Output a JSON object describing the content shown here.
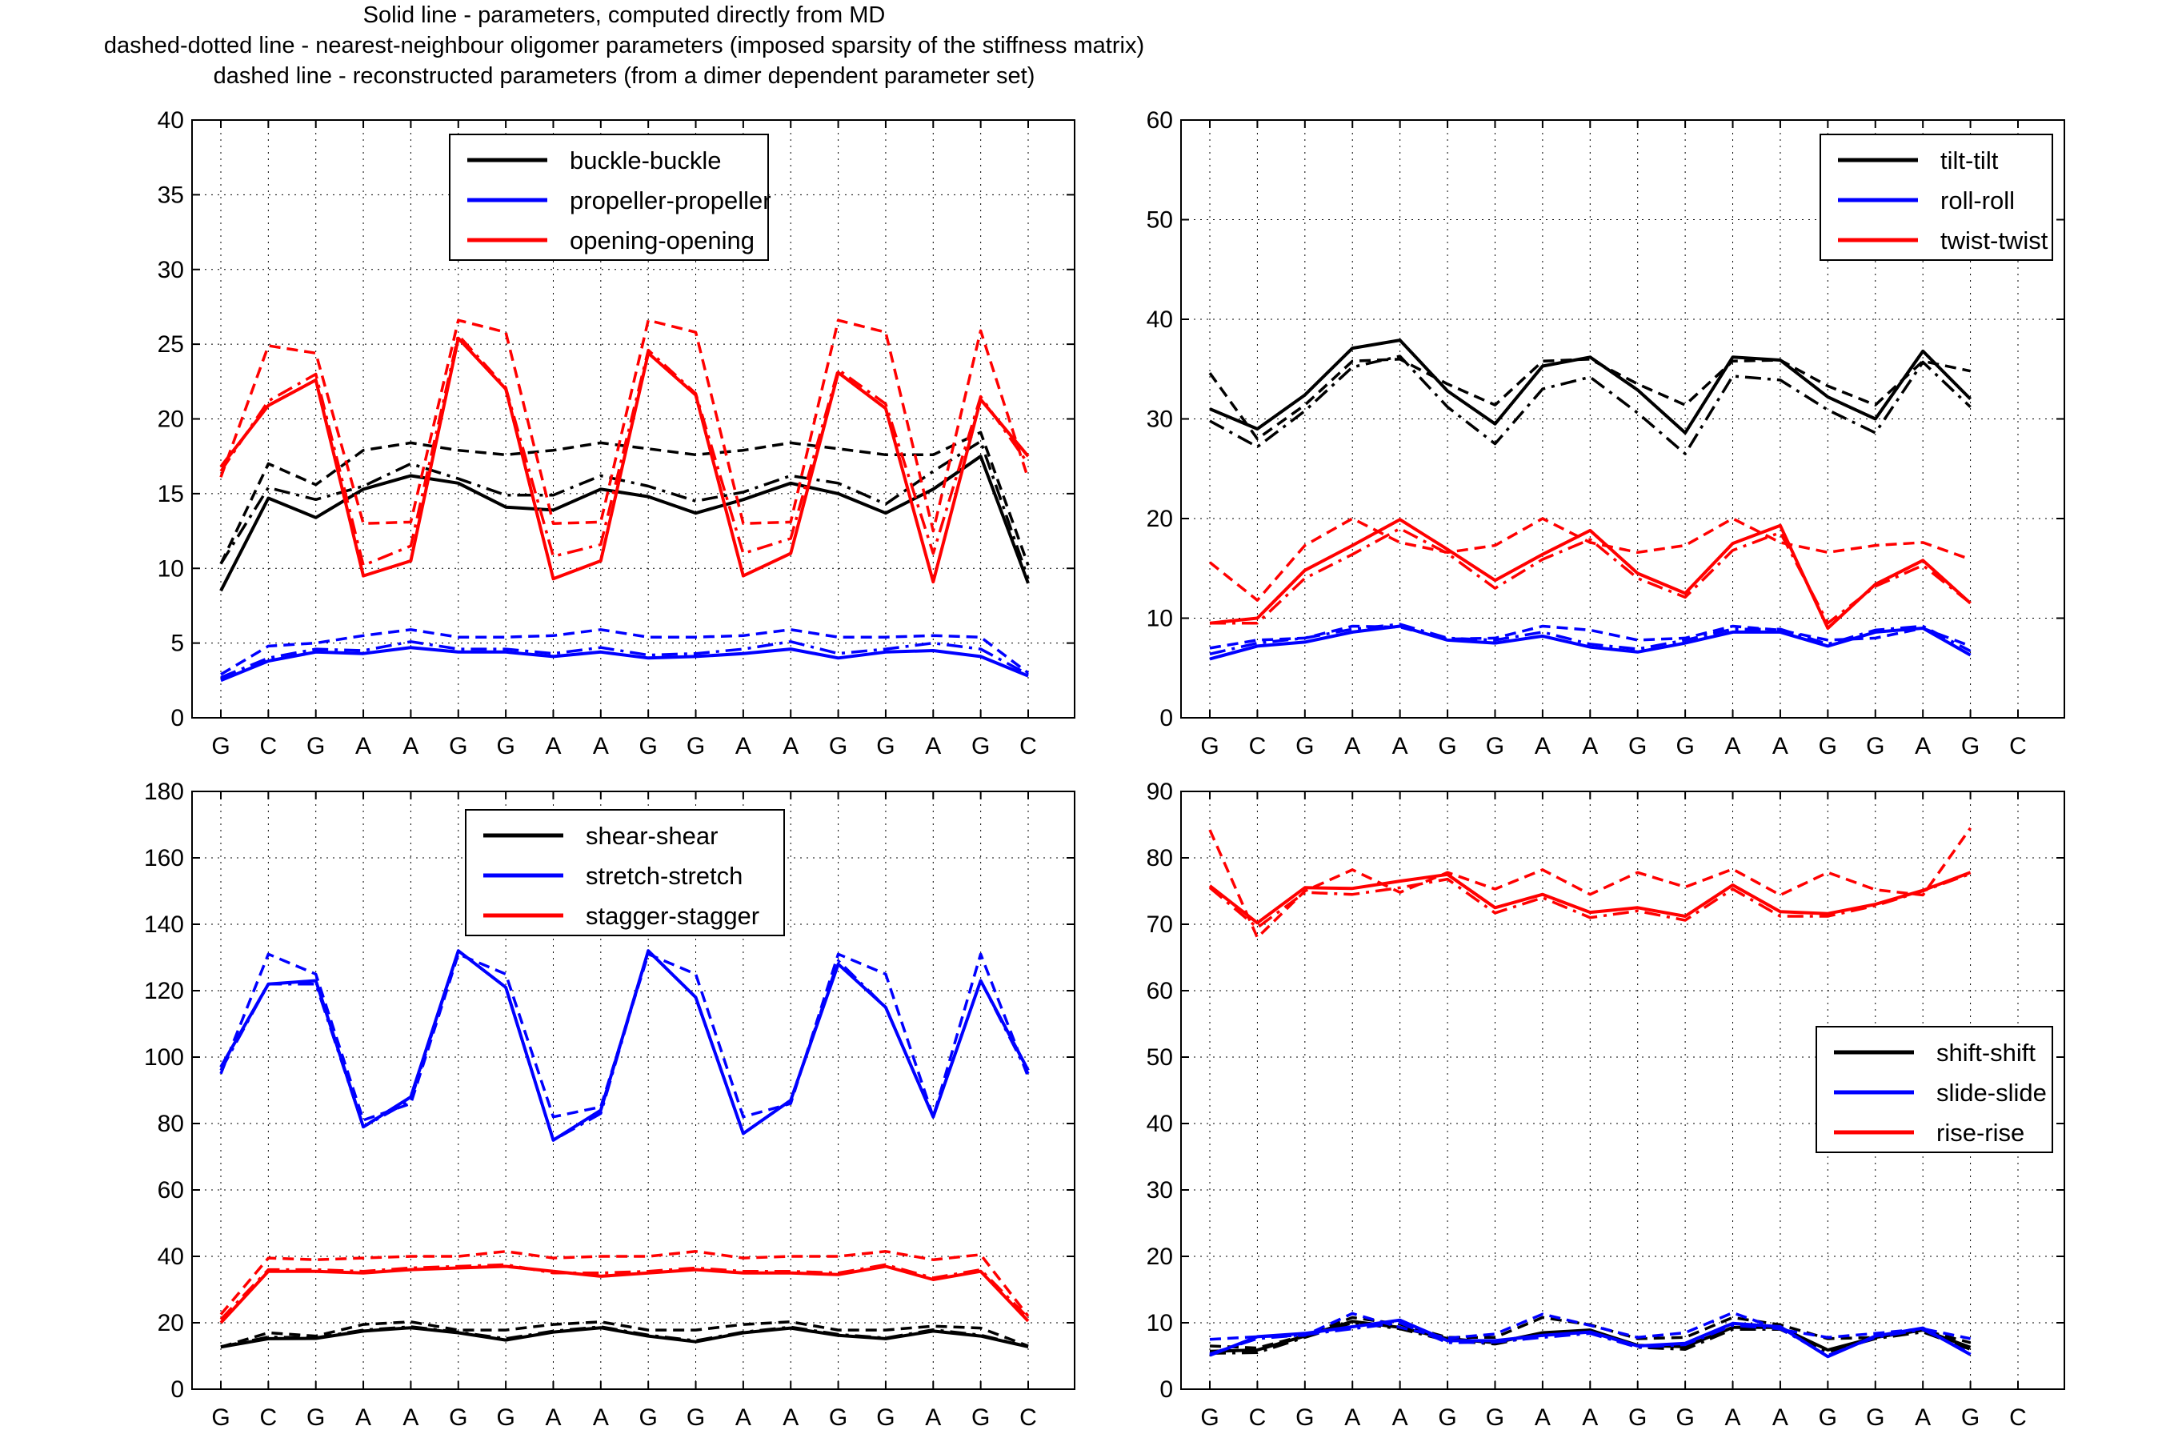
{
  "header": {
    "lines": [
      "Solid line - parameters, computed directly from MD",
      "dashed-dotted line - nearest-neighbour oligomer parameters (imposed sparsity of the stiffness matrix)",
      "dashed line - reconstructed parameters (from a dimer dependent parameter set)"
    ]
  },
  "colors": {
    "black": "#000000",
    "blue": "#0000ff",
    "red": "#ff0000"
  },
  "chart_data": [
    {
      "type": "line",
      "title": "",
      "categories": [
        "G",
        "C",
        "G",
        "A",
        "A",
        "G",
        "G",
        "A",
        "A",
        "G",
        "G",
        "A",
        "A",
        "G",
        "G",
        "A",
        "G",
        "C"
      ],
      "ylim": [
        0,
        40
      ],
      "yticks": [
        0,
        5,
        10,
        15,
        20,
        25,
        30,
        35,
        40
      ],
      "grid": true,
      "legend_position": "top-center",
      "series": [
        {
          "name": "buckle-buckle",
          "color": "#000000",
          "solid": [
            8.5,
            14.7,
            13.4,
            15.3,
            16.2,
            15.7,
            14.1,
            13.9,
            15.3,
            14.8,
            13.7,
            14.6,
            15.7,
            15.0,
            13.7,
            15.3,
            17.5,
            9.0
          ],
          "dashdot": [
            10.3,
            15.4,
            14.6,
            15.5,
            17.0,
            16.0,
            14.9,
            14.9,
            16.2,
            15.5,
            14.5,
            15.1,
            16.2,
            15.7,
            14.3,
            16.5,
            18.5,
            9.3
          ],
          "dashed": [
            10.3,
            17.0,
            15.6,
            17.9,
            18.4,
            17.9,
            17.6,
            17.9,
            18.4,
            18.0,
            17.6,
            17.9,
            18.4,
            18.0,
            17.6,
            17.6,
            19.1,
            10.2
          ]
        },
        {
          "name": "propeller-propeller",
          "color": "#0000ff",
          "solid": [
            2.5,
            3.8,
            4.4,
            4.3,
            4.7,
            4.4,
            4.4,
            4.1,
            4.4,
            4.0,
            4.1,
            4.3,
            4.6,
            4.0,
            4.4,
            4.5,
            4.1,
            2.8
          ],
          "dashdot": [
            2.7,
            4.0,
            4.6,
            4.5,
            5.1,
            4.6,
            4.6,
            4.3,
            4.7,
            4.2,
            4.3,
            4.6,
            5.1,
            4.3,
            4.6,
            5.0,
            4.6,
            2.9
          ],
          "dashed": [
            2.9,
            4.8,
            5.0,
            5.5,
            5.9,
            5.4,
            5.4,
            5.5,
            5.9,
            5.4,
            5.4,
            5.5,
            5.9,
            5.4,
            5.4,
            5.5,
            5.4,
            3.0
          ]
        },
        {
          "name": "opening-opening",
          "color": "#ff0000",
          "solid": [
            16.8,
            20.9,
            22.6,
            9.5,
            10.5,
            25.4,
            22.0,
            9.3,
            10.5,
            24.4,
            21.6,
            9.5,
            11.0,
            23.1,
            20.7,
            9.1,
            21.3,
            17.5
          ],
          "dashdot": [
            16.5,
            21.2,
            23.0,
            10.2,
            11.5,
            25.6,
            22.1,
            10.8,
            11.6,
            24.6,
            21.7,
            11.0,
            12.0,
            23.3,
            21.0,
            11.0,
            21.5,
            17.0
          ],
          "dashed": [
            16.1,
            24.9,
            24.4,
            13.0,
            13.1,
            26.6,
            25.8,
            13.0,
            13.1,
            26.6,
            25.8,
            13.0,
            13.1,
            26.6,
            25.8,
            12.5,
            25.9,
            16.0
          ]
        }
      ]
    },
    {
      "type": "line",
      "title": "",
      "categories": [
        "G",
        "C",
        "G",
        "A",
        "A",
        "G",
        "G",
        "A",
        "A",
        "G",
        "G",
        "A",
        "A",
        "G",
        "G",
        "A",
        "G",
        "C"
      ],
      "ylim": [
        0,
        60
      ],
      "yticks": [
        0,
        10,
        20,
        30,
        40,
        50,
        60
      ],
      "grid": true,
      "legend_position": "top-right",
      "series": [
        {
          "name": "tilt-tilt",
          "color": "#000000",
          "solid": [
            31.0,
            29.0,
            32.4,
            37.1,
            37.9,
            32.8,
            29.5,
            35.3,
            36.2,
            32.9,
            28.6,
            36.2,
            35.9,
            32.2,
            30.0,
            36.8,
            32.0
          ],
          "dashdot": [
            29.8,
            27.2,
            30.8,
            35.2,
            36.3,
            31.2,
            27.5,
            33.0,
            34.2,
            30.6,
            26.5,
            34.3,
            33.9,
            30.9,
            28.6,
            35.7,
            31.2
          ],
          "dashed": [
            34.6,
            28.0,
            31.4,
            35.8,
            36.0,
            33.5,
            31.4,
            35.8,
            36.0,
            33.5,
            31.4,
            35.8,
            35.9,
            33.3,
            31.4,
            35.8,
            34.8
          ]
        },
        {
          "name": "roll-roll",
          "color": "#0000ff",
          "solid": [
            5.9,
            7.2,
            7.6,
            8.6,
            9.2,
            7.8,
            7.5,
            8.2,
            7.1,
            6.6,
            7.5,
            8.6,
            8.6,
            7.2,
            8.6,
            9.0,
            6.3
          ],
          "dashdot": [
            6.4,
            7.5,
            8.0,
            8.9,
            9.4,
            8.0,
            7.8,
            8.6,
            7.4,
            6.9,
            7.8,
            8.9,
            8.9,
            7.4,
            8.8,
            9.2,
            6.7
          ],
          "dashed": [
            7.0,
            7.8,
            8.0,
            9.2,
            9.1,
            7.9,
            8.0,
            9.2,
            8.8,
            7.8,
            8.0,
            9.2,
            8.8,
            7.8,
            8.0,
            9.0,
            7.2
          ]
        },
        {
          "name": "twist-twist",
          "color": "#ff0000",
          "solid": [
            9.5,
            10.0,
            14.8,
            17.3,
            19.9,
            16.9,
            13.8,
            16.4,
            18.8,
            14.5,
            12.5,
            17.5,
            19.3,
            9.0,
            13.4,
            15.8,
            11.5
          ],
          "dashdot": [
            9.5,
            9.5,
            14.0,
            16.4,
            19.0,
            16.5,
            13.0,
            15.9,
            17.9,
            14.0,
            12.1,
            16.8,
            18.6,
            9.5,
            13.2,
            15.3,
            11.5
          ],
          "dashed": [
            15.6,
            11.8,
            17.3,
            20.0,
            17.6,
            16.6,
            17.3,
            20.0,
            17.6,
            16.6,
            17.3,
            20.0,
            17.6,
            16.6,
            17.3,
            17.6,
            15.9
          ]
        }
      ]
    },
    {
      "type": "line",
      "title": "",
      "categories": [
        "G",
        "C",
        "G",
        "A",
        "A",
        "G",
        "G",
        "A",
        "A",
        "G",
        "G",
        "A",
        "A",
        "G",
        "G",
        "A",
        "G",
        "C"
      ],
      "ylim": [
        0,
        180
      ],
      "yticks": [
        0,
        20,
        40,
        60,
        80,
        100,
        120,
        140,
        160,
        180
      ],
      "grid": true,
      "legend_position": "top-center",
      "series": [
        {
          "name": "shear-shear",
          "color": "#000000",
          "solid": [
            12.7,
            15.2,
            15.3,
            17.5,
            18.5,
            17.0,
            14.8,
            17.2,
            18.5,
            16.0,
            14.3,
            17.0,
            18.4,
            16.2,
            15.2,
            17.5,
            16.0,
            12.8
          ],
          "dashdot": [
            12.8,
            15.7,
            15.5,
            17.8,
            18.8,
            17.2,
            15.2,
            17.5,
            18.8,
            16.3,
            14.6,
            17.2,
            18.7,
            16.5,
            15.4,
            17.9,
            16.3,
            12.8
          ],
          "dashed": [
            12.7,
            17.0,
            16.0,
            19.5,
            20.3,
            17.8,
            17.8,
            19.5,
            20.3,
            17.8,
            17.8,
            19.5,
            20.3,
            17.8,
            17.8,
            19.0,
            18.4,
            13.0
          ]
        },
        {
          "name": "stretch-stretch",
          "color": "#0000ff",
          "solid": [
            97,
            122,
            123,
            79,
            88,
            132,
            121,
            75,
            84,
            132,
            118,
            77,
            87,
            128,
            115,
            82,
            123,
            96
          ],
          "dashdot": [
            96,
            122,
            122,
            79,
            87,
            132,
            121,
            75,
            83,
            132,
            118,
            77,
            87,
            129,
            115,
            82,
            123,
            95
          ],
          "dashed": [
            95,
            131,
            125,
            81,
            86,
            131,
            125,
            82,
            85,
            131,
            125,
            82,
            86,
            131,
            125,
            82,
            131,
            94
          ]
        },
        {
          "name": "stagger-stagger",
          "color": "#ff0000",
          "solid": [
            20,
            35.5,
            35.5,
            35,
            36,
            36.5,
            37,
            35.5,
            34,
            35,
            36,
            35,
            35,
            34.5,
            37,
            33,
            35.5,
            20.5
          ],
          "dashdot": [
            21,
            36,
            36,
            35.5,
            36.5,
            37,
            37.5,
            35,
            35,
            35.5,
            36.5,
            35.5,
            35.5,
            35,
            37.5,
            33.5,
            36,
            21.5
          ],
          "dashed": [
            22.5,
            39.5,
            39,
            39.5,
            40,
            40,
            41.5,
            39.5,
            40,
            40,
            41.5,
            39.5,
            40,
            40,
            41.5,
            39,
            40.5,
            22
          ]
        }
      ]
    },
    {
      "type": "line",
      "title": "",
      "categories": [
        "G",
        "C",
        "G",
        "A",
        "A",
        "G",
        "G",
        "A",
        "A",
        "G",
        "G",
        "A",
        "A",
        "G",
        "G",
        "A",
        "G",
        "C"
      ],
      "ylim": [
        0,
        90
      ],
      "yticks": [
        0,
        10,
        20,
        30,
        40,
        50,
        60,
        70,
        80,
        90
      ],
      "grid": true,
      "legend_position": "center-right",
      "series": [
        {
          "name": "shift-shift",
          "color": "#000000",
          "solid": [
            5.7,
            5.9,
            8.0,
            10.2,
            9.3,
            7.6,
            7.0,
            8.5,
            8.9,
            6.6,
            6.4,
            9.3,
            9.3,
            5.9,
            7.8,
            8.9,
            6.3
          ],
          "dashdot": [
            5.4,
            5.5,
            7.8,
            10.0,
            9.1,
            7.3,
            6.8,
            8.2,
            8.6,
            6.3,
            6.0,
            9.0,
            9.0,
            5.6,
            7.6,
            8.6,
            6.0
          ],
          "dashed": [
            6.5,
            6.2,
            8.1,
            10.8,
            9.8,
            7.8,
            7.8,
            10.8,
            9.7,
            7.6,
            7.8,
            10.8,
            9.7,
            7.6,
            7.8,
            8.9,
            7.0
          ]
        },
        {
          "name": "slide-slide",
          "color": "#0000ff",
          "solid": [
            5.1,
            7.9,
            8.4,
            9.4,
            10.4,
            7.3,
            7.3,
            8.1,
            8.6,
            6.5,
            6.9,
            9.9,
            9.4,
            4.9,
            8.0,
            9.2,
            5.2
          ],
          "dashdot": [
            5.3,
            7.6,
            8.2,
            9.1,
            10.0,
            7.0,
            7.1,
            7.8,
            8.4,
            6.3,
            6.7,
            9.6,
            9.1,
            5.1,
            7.8,
            9.0,
            5.4
          ],
          "dashed": [
            7.5,
            7.9,
            8.1,
            11.4,
            9.3,
            7.7,
            8.3,
            11.3,
            9.6,
            7.8,
            8.5,
            11.5,
            9.0,
            7.8,
            8.4,
            9.1,
            7.6
          ]
        },
        {
          "name": "rise-rise",
          "color": "#ff0000",
          "solid": [
            75.8,
            70.2,
            75.5,
            75.4,
            76.5,
            77.5,
            72.5,
            74.5,
            71.8,
            72.5,
            71.2,
            75.9,
            71.9,
            71.6,
            73.0,
            75.1,
            77.8
          ],
          "dashdot": [
            75.5,
            69.5,
            74.8,
            74.5,
            75.5,
            76.8,
            71.7,
            74.0,
            71.0,
            72.0,
            70.6,
            75.3,
            71.2,
            71.2,
            72.8,
            75.0,
            77.6
          ],
          "dashed": [
            84.2,
            68.0,
            75.0,
            78.2,
            74.8,
            77.8,
            75.3,
            78.2,
            74.5,
            77.8,
            75.6,
            78.3,
            74.4,
            77.8,
            75.2,
            74.4,
            84.5
          ]
        }
      ]
    }
  ]
}
